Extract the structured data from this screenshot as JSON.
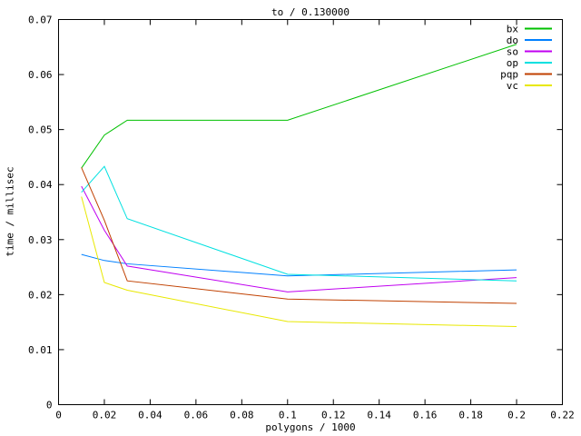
{
  "chart_data": {
    "type": "line",
    "title": "to / 0.130000",
    "xlabel": "polygons / 1000",
    "ylabel": "time / millisec",
    "xlim": [
      0,
      0.22
    ],
    "ylim": [
      0,
      0.07
    ],
    "xticks": [
      0,
      0.02,
      0.04,
      0.06,
      0.08,
      0.1,
      0.12,
      0.14,
      0.16,
      0.18,
      0.2,
      0.22
    ],
    "yticks": [
      0,
      0.01,
      0.02,
      0.03,
      0.04,
      0.05,
      0.06,
      0.07
    ],
    "grid": false,
    "legend_position": "top-right",
    "x": [
      0.01,
      0.02,
      0.03,
      0.1,
      0.2
    ],
    "series": [
      {
        "name": "bx",
        "color": "#00c000",
        "values": [
          0.043,
          0.049,
          0.0517,
          0.0517,
          0.0655
        ]
      },
      {
        "name": "do",
        "color": "#0080ff",
        "values": [
          0.0273,
          0.0262,
          0.0256,
          0.0234,
          0.0245
        ]
      },
      {
        "name": "so",
        "color": "#c000f0",
        "values": [
          0.0397,
          0.0317,
          0.0252,
          0.0205,
          0.0231
        ]
      },
      {
        "name": "op",
        "color": "#00e0e0",
        "values": [
          0.0386,
          0.0433,
          0.0338,
          0.0237,
          0.0225
        ]
      },
      {
        "name": "pqp",
        "color": "#c04000",
        "values": [
          0.0431,
          0.0335,
          0.0225,
          0.0192,
          0.0184
        ]
      },
      {
        "name": "vc",
        "color": "#e8e800",
        "values": [
          0.0378,
          0.0222,
          0.0208,
          0.0151,
          0.0142
        ]
      }
    ],
    "axis_color": "#000000",
    "background_color": "#ffffff"
  }
}
